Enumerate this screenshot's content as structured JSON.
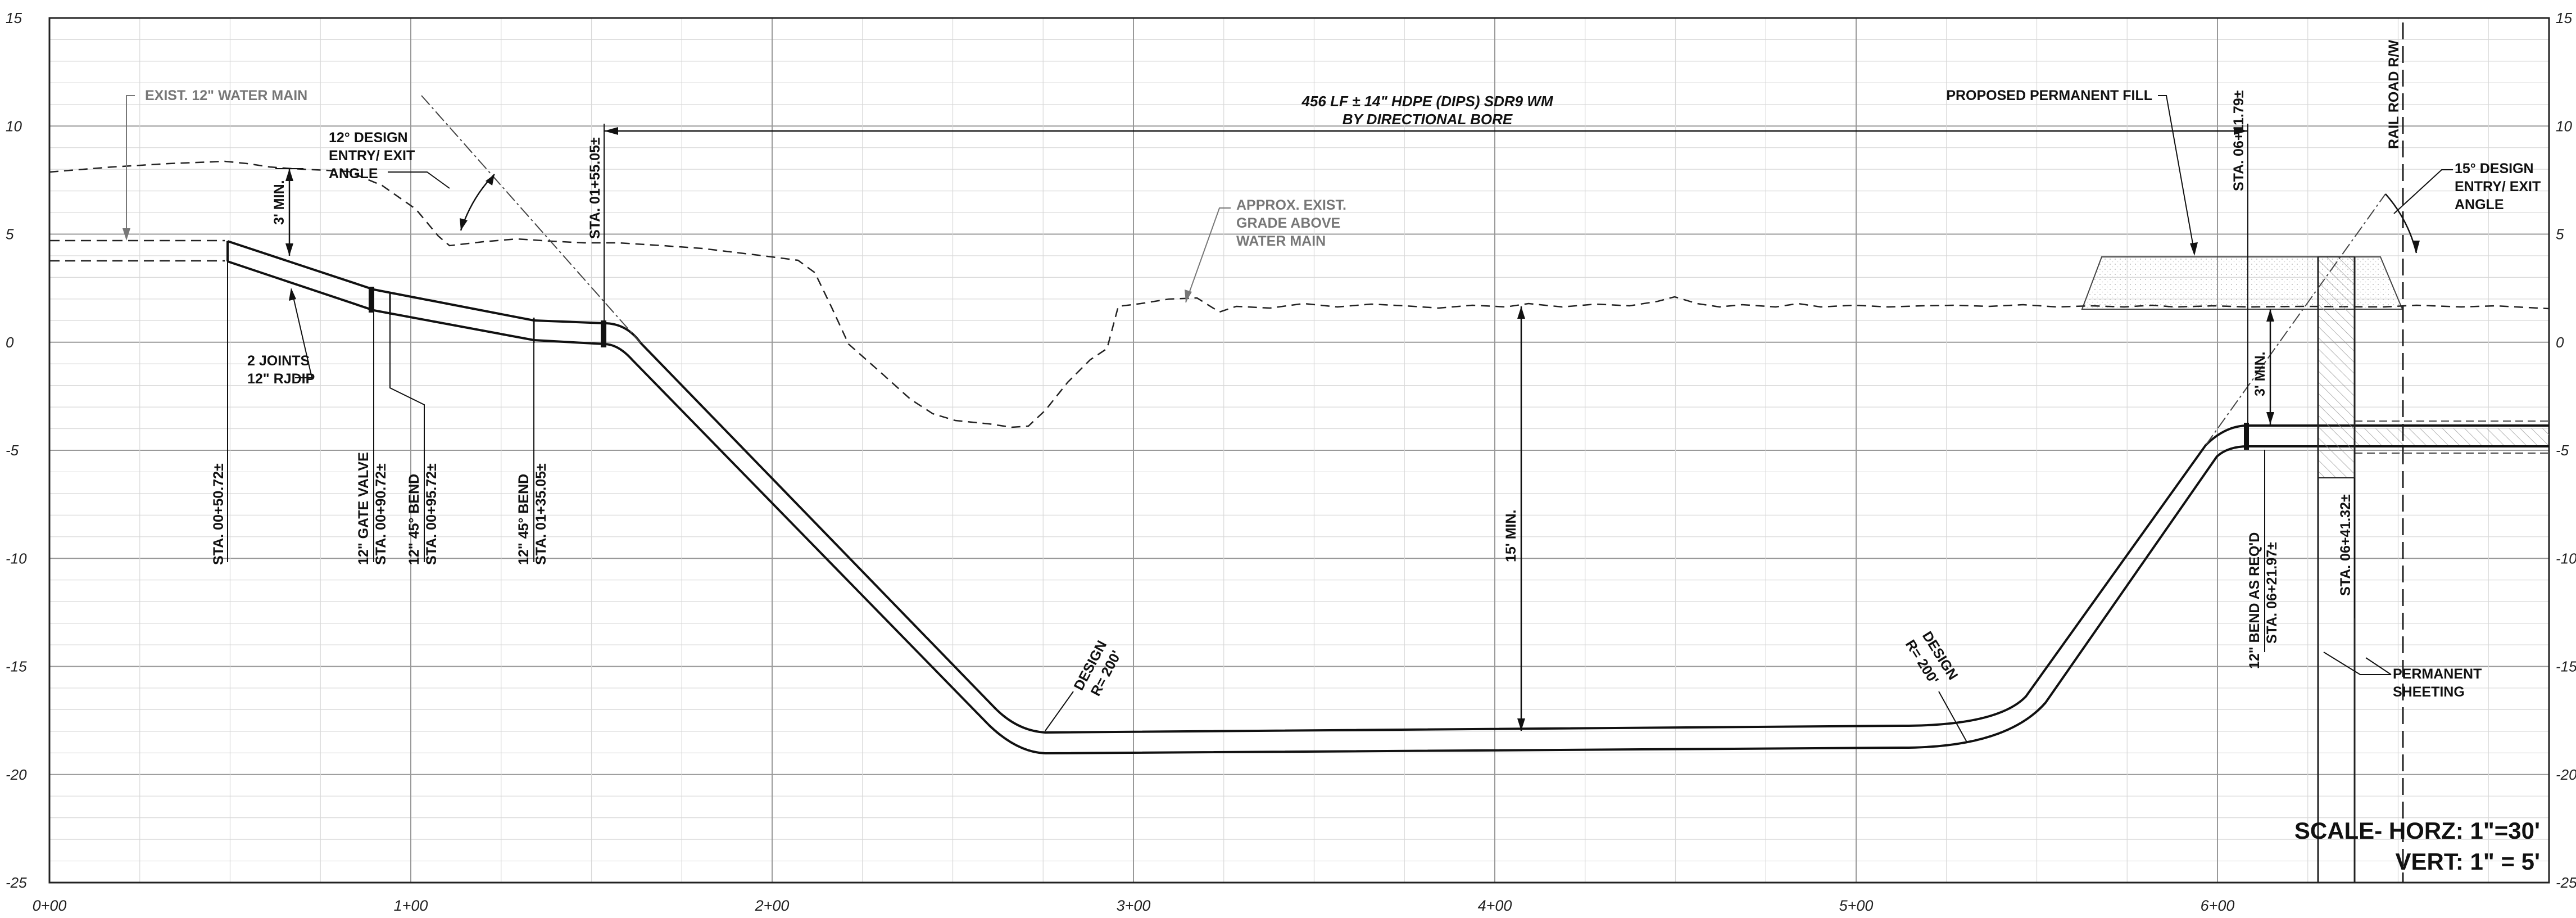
{
  "axes": {
    "y_ticks": [
      "15",
      "10",
      "5",
      "0",
      "-5",
      "-10",
      "-15",
      "-20",
      "-25"
    ],
    "x_ticks": [
      "0+00",
      "1+00",
      "2+00",
      "3+00",
      "4+00",
      "5+00",
      "6+00"
    ]
  },
  "notes": {
    "exist_water_main": "EXIST. 12\" WATER MAIN",
    "design_angle_left": [
      "12° DESIGN",
      "ENTRY/ EXIT",
      "ANGLE"
    ],
    "min_cover_left": "3' MIN.",
    "bore_title": [
      "456 LF ± 14\" HDPE (DIPS) SDR9 WM",
      "BY DIRECTIONAL BORE"
    ],
    "grade_above": [
      "APPROX. EXIST.",
      "GRADE ABOVE",
      "WATER MAIN"
    ],
    "fill": "PROPOSED PERMANENT FILL",
    "railroad": "RAIL ROAD R/W",
    "design_angle_right": [
      "15° DESIGN",
      "ENTRY/ EXIT",
      "ANGLE"
    ],
    "joints": [
      "2 JOINTS",
      "12\" RJDIP"
    ],
    "min_cover_center": "15' MIN.",
    "min_cover_right": "3' MIN.",
    "radius_left": [
      "DESIGN",
      "R= 200'"
    ],
    "radius_right": [
      "DESIGN",
      "R= 200'"
    ],
    "sheeting": [
      "PERMANENT",
      "SHEETING"
    ]
  },
  "stations": {
    "sta_050": "STA. 00+50.72±",
    "gate_valve": "12\" GATE VALVE",
    "sta_090": "STA. 00+90.72±",
    "bend_095_label": "12\" 45° BEND",
    "sta_095": "STA. 00+95.72±",
    "bend_135_label": "12\" 45° BEND",
    "sta_135": "STA. 01+35.05±",
    "sta_155": "STA. 01+55.05±",
    "sta_611": "STA. 06+11.79±",
    "bend_621_label": "12\" BEND AS REQ'D",
    "sta_621": "STA. 06+21.97±",
    "sta_641": "STA. 06+41.32±"
  },
  "scale": {
    "horz": "SCALE- HORZ: 1\"=30'",
    "vert": "VERT: 1\" = 5'"
  }
}
